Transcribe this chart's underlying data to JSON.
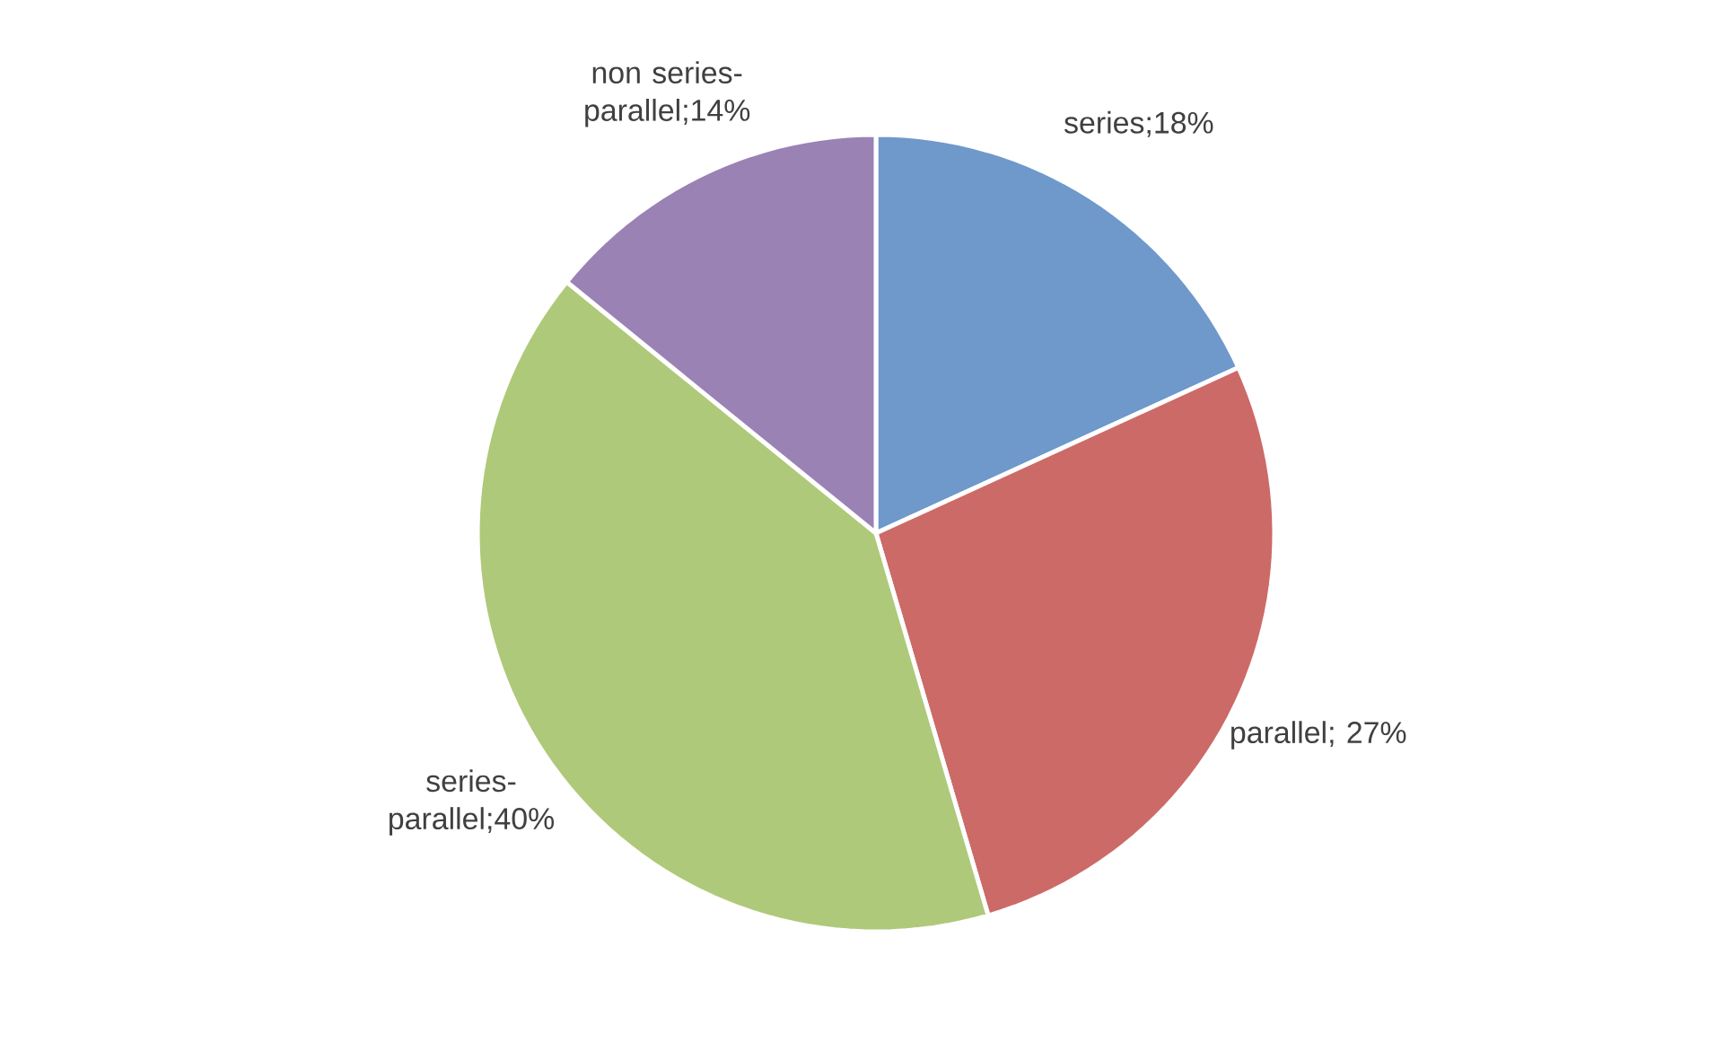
{
  "chart_data": {
    "type": "pie",
    "categories": [
      "series",
      "parallel",
      "series-parallel",
      "non series-parallel"
    ],
    "values": [
      18,
      27,
      40,
      14
    ],
    "value_labels": [
      ";18%",
      "; 27%",
      ";40%",
      ";14%"
    ],
    "colors": [
      "#6f98cb",
      "#cc6a67",
      "#aec979",
      "#9a82b5"
    ]
  }
}
